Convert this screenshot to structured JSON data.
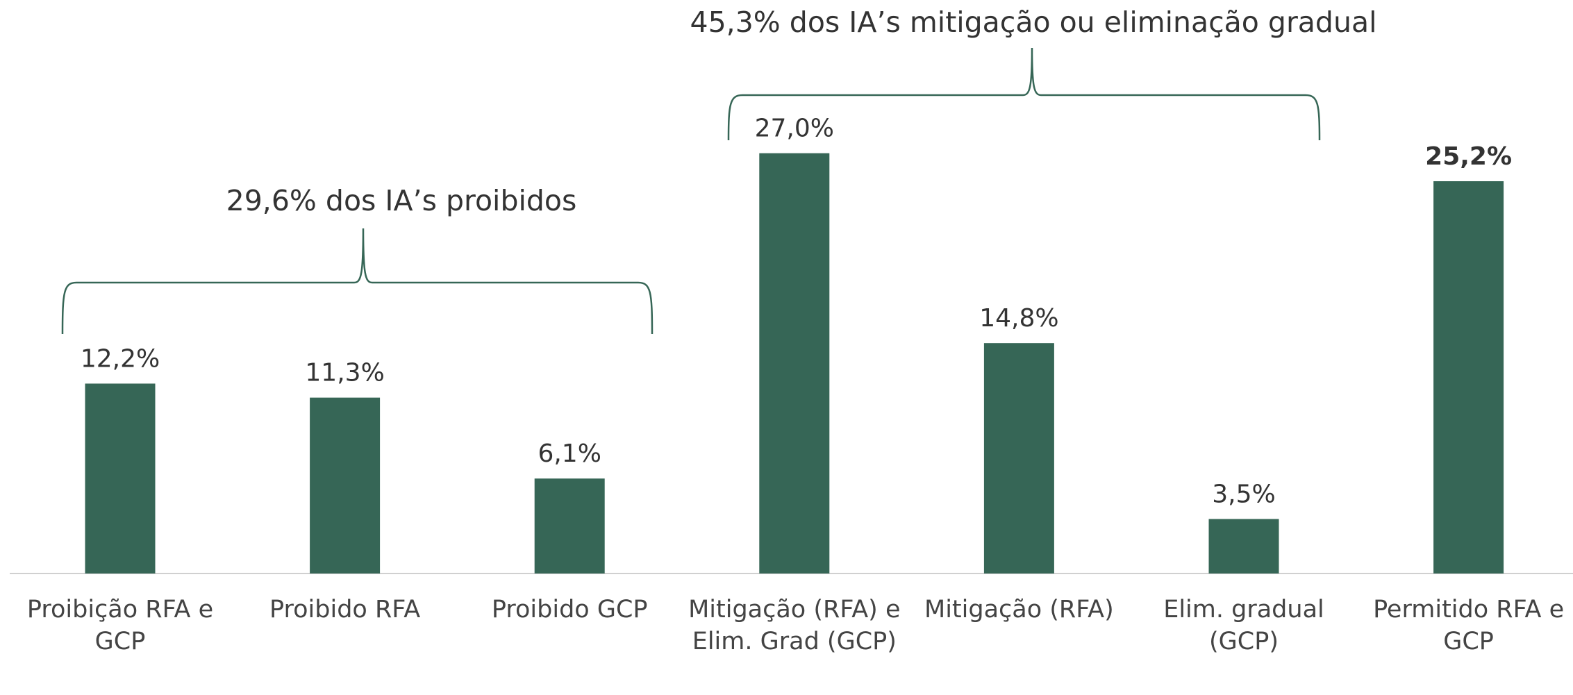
{
  "chart_data": {
    "type": "bar",
    "categories": [
      "Proibição RFA e GCP",
      "Proibido RFA",
      "Proibido GCP",
      "Mitigação (RFA) e Elim. Grad (GCP)",
      "Mitigação (RFA)",
      "Elim. gradual (GCP)",
      "Permitido RFA e GCP"
    ],
    "values": [
      12.2,
      11.3,
      6.1,
      27.0,
      14.8,
      3.5,
      25.2
    ],
    "value_labels": [
      "12,2%",
      "11,3%",
      "6,1%",
      "27,0%",
      "14,8%",
      "3,5%",
      "25,2%"
    ],
    "value_label_colors": [
      "#333333",
      "#333333",
      "#333333",
      "#333333",
      "#333333",
      "#333333",
      "#ff0000"
    ],
    "value_label_bold": [
      false,
      false,
      false,
      false,
      false,
      false,
      true
    ],
    "color": "#366656",
    "annotations": [
      "29,6% dos IA’s proibidos",
      "45,3% dos IA’s mitigação ou eliminação gradual"
    ]
  }
}
